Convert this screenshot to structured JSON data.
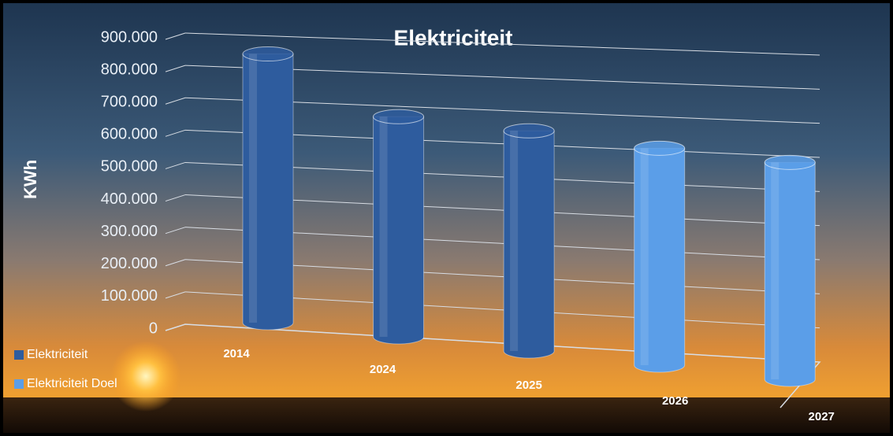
{
  "chart_data": {
    "type": "cylinder",
    "title": "Elektriciteit",
    "y_label": "KWh",
    "categories": [
      "2014",
      "2024",
      "2025",
      "2026",
      "2027"
    ],
    "series": [
      {
        "name": "Elektriciteit",
        "color": "#2e5c9e",
        "values": [
          850000,
          700000,
          700000,
          null,
          null
        ]
      },
      {
        "name": "Elektriciteit Doel",
        "color": "#5b9ee8",
        "values": [
          null,
          null,
          null,
          690000,
          690000
        ]
      }
    ],
    "ylim": [
      0,
      900000
    ],
    "yticks": [
      0,
      {
        "value": 100000,
        "label": "100.000"
      },
      {
        "value": 200000,
        "label": "200.000"
      },
      {
        "value": 300000,
        "label": "300.000"
      },
      {
        "value": 400000,
        "label": "400.000"
      },
      {
        "value": 500000,
        "label": "500.000"
      },
      {
        "value": 600000,
        "label": "600.000"
      },
      {
        "value": 700000,
        "label": "700.000"
      },
      {
        "value": 800000,
        "label": "800.000"
      },
      {
        "value": 900000,
        "label": "900.000"
      }
    ],
    "grid": true,
    "legend": "bottom-left"
  }
}
